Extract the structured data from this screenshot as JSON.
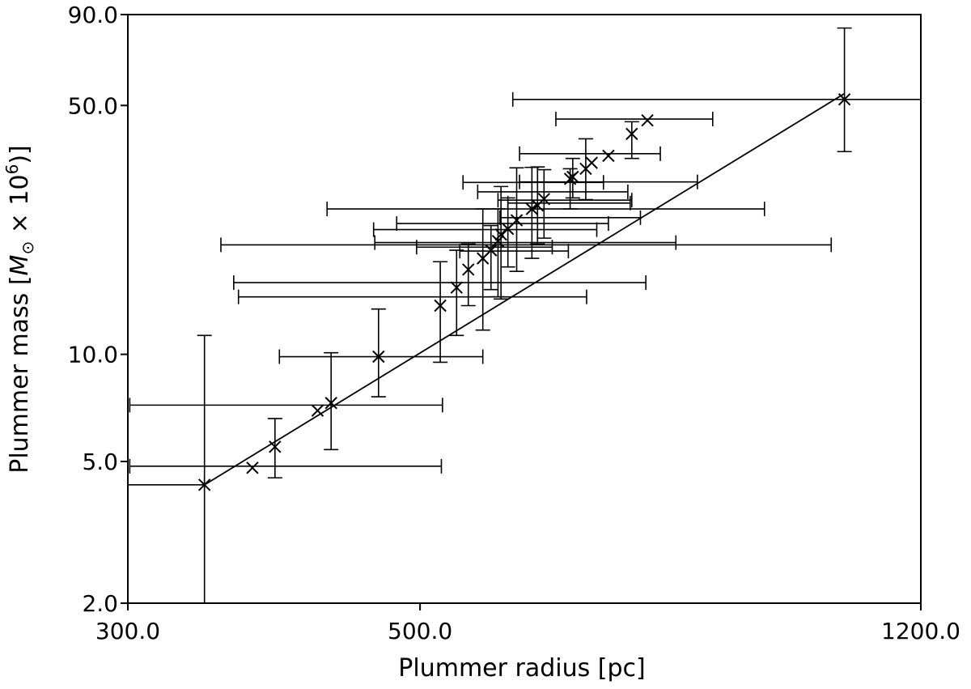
{
  "chart_data": {
    "type": "scatter",
    "xlabel": "Plummer radius [pc]",
    "ylabel_parts": {
      "prefix": "Plummer mass [",
      "symbol": "M",
      "subscript": "⊙",
      "times": " × 10",
      "superscript": "6",
      "suffix": ")]",
      "open_paren": "("
    },
    "x_scale": "log",
    "y_scale": "log",
    "xlim": [
      300,
      1200
    ],
    "ylim": [
      2,
      90
    ],
    "xticks": [
      300,
      500,
      1200
    ],
    "xtick_labels": [
      "300.0",
      "500.0",
      "1200.0"
    ],
    "yticks": [
      2,
      5,
      10,
      50,
      90
    ],
    "ytick_labels": [
      "2.0",
      "5.0",
      "10.0",
      "50.0",
      "90.0"
    ],
    "grid": false,
    "fit_line": {
      "x": [
        343,
        1050
      ],
      "y": [
        4.3,
        54
      ]
    },
    "points": [
      {
        "x": 343,
        "y": 4.3,
        "xerr": [
          300,
          343
        ],
        "yerr": [
          2.0,
          11.3
        ]
      },
      {
        "x": 373,
        "y": 4.8
      },
      {
        "x": 388,
        "y": 5.5,
        "yerr": [
          4.5,
          6.6
        ]
      },
      {
        "x": 418,
        "y": 6.95
      },
      {
        "x": 428,
        "y": 7.3,
        "yerr": [
          5.4,
          10.1
        ]
      },
      {
        "x": 465,
        "y": 9.85,
        "xerr": [
          391,
          558
        ],
        "yerr": [
          7.6,
          13.4
        ]
      },
      {
        "x": 518,
        "y": 13.7,
        "yerr": [
          9.5,
          18.2
        ]
      },
      {
        "x": 533,
        "y": 15.4,
        "yerr": [
          11.3,
          19.6
        ]
      },
      {
        "x": 544,
        "y": 17.3,
        "yerr": [
          13.7,
          20.4
        ]
      },
      {
        "x": 558,
        "y": 18.6,
        "yerr": [
          11.7,
          25.6
        ]
      },
      {
        "x": 566,
        "y": 19.6,
        "yerr": [
          15.2,
          23.0
        ]
      },
      {
        "x": 573,
        "y": 20.8,
        "yerr": [
          14.5,
          25.6
        ]
      },
      {
        "x": 576,
        "y": 21.7,
        "yerr": [
          14.3,
          29.6
        ]
      },
      {
        "x": 583,
        "y": 22.5,
        "yerr": [
          17.6,
          27.5
        ]
      },
      {
        "x": 592,
        "y": 23.8,
        "yerr": [
          17.1,
          33.4
        ]
      },
      {
        "x": 608,
        "y": 25.6,
        "xerr": [
          425,
          913
        ],
        "yerr": [
          18.6,
          33.5
        ]
      },
      {
        "x": 614,
        "y": 26.2,
        "yerr": [
          20.4,
          33.6
        ]
      },
      {
        "x": 621,
        "y": 27.3,
        "yerr": [
          21.2,
          33.0
        ]
      },
      {
        "x": 650,
        "y": 31.1,
        "yerr": [
          25.6,
          33.2
        ]
      },
      {
        "x": 653,
        "y": 31.5,
        "yerr": [
          27.5,
          35.5
        ]
      },
      {
        "x": 668,
        "y": 33.2,
        "yerr": [
          27.2,
          40.3
        ]
      },
      {
        "x": 675,
        "y": 34.5
      },
      {
        "x": 695,
        "y": 36.1
      },
      {
        "x": 724,
        "y": 41.6,
        "yerr": [
          35.5,
          45.0
        ]
      },
      {
        "x": 744,
        "y": 45.4
      },
      {
        "x": 1050,
        "y": 52.0,
        "xerr": [
          588,
          1200
        ],
        "yerr": [
          37.1,
          82.5
        ]
      }
    ],
    "hbars": [
      {
        "x0": 353,
        "x1": 1026,
        "y": 20.3
      },
      {
        "x0": 361,
        "x1": 742,
        "y": 15.9
      },
      {
        "x0": 364,
        "x1": 669,
        "y": 14.5
      },
      {
        "x0": 301,
        "x1": 520,
        "y": 7.2
      },
      {
        "x0": 301,
        "x1": 519,
        "y": 4.85
      },
      {
        "x0": 462,
        "x1": 782,
        "y": 20.6
      },
      {
        "x0": 461,
        "x1": 681,
        "y": 22.4
      },
      {
        "x0": 480,
        "x1": 695,
        "y": 23.3
      },
      {
        "x0": 497,
        "x1": 630,
        "y": 20.0
      },
      {
        "x0": 536,
        "x1": 648,
        "y": 19.5
      },
      {
        "x0": 539,
        "x1": 689,
        "y": 30.4
      },
      {
        "x0": 553,
        "x1": 719,
        "y": 28.6
      },
      {
        "x0": 573,
        "x1": 724,
        "y": 27.1
      },
      {
        "x0": 583,
        "x1": 722,
        "y": 26.6
      },
      {
        "x0": 575,
        "x1": 735,
        "y": 24.2
      },
      {
        "x0": 595,
        "x1": 761,
        "y": 36.6
      },
      {
        "x0": 595,
        "x1": 812,
        "y": 30.5
      },
      {
        "x0": 634,
        "x1": 834,
        "y": 45.8
      }
    ]
  }
}
